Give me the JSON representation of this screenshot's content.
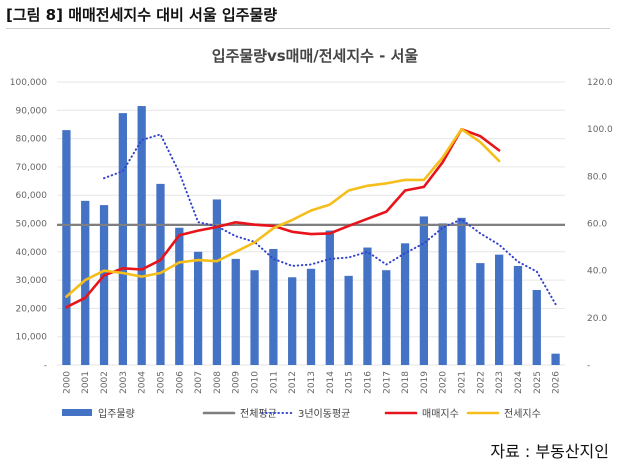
{
  "figure_title": "[그림 8] 매매전세지수 대비 서울 입주물량",
  "source": "자료 : 부동산지인",
  "colors": {
    "bar": "#4472C4",
    "avg": "#7F7F7F",
    "ma": "#3344CC",
    "sale": "#E8141B",
    "jeonse": "#F5BE1A"
  },
  "chart_data": {
    "type": "bar",
    "title": "입주물량vs매매/전세지수 - 서울",
    "categories": [
      "2000",
      "2001",
      "2002",
      "2003",
      "2004",
      "2005",
      "2006",
      "2007",
      "2008",
      "2009",
      "2010",
      "2011",
      "2012",
      "2013",
      "2014",
      "2015",
      "2016",
      "2017",
      "2018",
      "2019",
      "2020",
      "2021",
      "2022",
      "2023",
      "2024",
      "2025",
      "2026"
    ],
    "y_left": {
      "min": 0,
      "max": 100000,
      "step": 10000,
      "tick_labels": [
        "-",
        "10,000",
        "20,000",
        "30,000",
        "40,000",
        "50,000",
        "60,000",
        "70,000",
        "80,000",
        "90,000",
        "100,000"
      ]
    },
    "y_right": {
      "min": 0,
      "max": 120,
      "step": 20,
      "tick_labels": [
        "-",
        "20.0",
        "40.0",
        "60.0",
        "80.0",
        "100.0",
        "120.0"
      ]
    },
    "series": [
      {
        "name": "입주물량",
        "type": "bar",
        "axis": "left",
        "values": [
          83000,
          58000,
          56500,
          89000,
          91500,
          64000,
          48500,
          40000,
          58500,
          37500,
          33500,
          41000,
          31000,
          34000,
          47500,
          31500,
          41500,
          33500,
          43000,
          52500,
          50000,
          52000,
          36000,
          39000,
          35000,
          26500,
          4000
        ]
      },
      {
        "name": "전체평균",
        "type": "hline",
        "axis": "left",
        "values": [
          49500,
          49500,
          49500,
          49500,
          49500,
          49500,
          49500,
          49500,
          49500,
          49500,
          49500,
          49500,
          49500,
          49500,
          49500,
          49500,
          49500,
          49500,
          49500,
          49500,
          49500,
          49500,
          49500,
          49500,
          49500,
          49500,
          49500
        ]
      },
      {
        "name": "3년이동평균",
        "type": "line",
        "style": "dotted",
        "axis": "left",
        "values": [
          null,
          null,
          66000,
          68500,
          79500,
          81500,
          68000,
          50500,
          49000,
          45500,
          43500,
          37500,
          35000,
          35500,
          37500,
          38000,
          40000,
          35500,
          39500,
          43000,
          48500,
          51500,
          46500,
          42500,
          36500,
          33000,
          21500
        ]
      },
      {
        "name": "매매지수",
        "type": "line",
        "axis": "right",
        "values": [
          24.5,
          28.5,
          38,
          41,
          40.5,
          44.5,
          55,
          57,
          58.5,
          60.5,
          59.5,
          59,
          56.5,
          55.5,
          55.8,
          59,
          62,
          65,
          74,
          75.5,
          86,
          100,
          97,
          91,
          null,
          null,
          null
        ]
      },
      {
        "name": "전세지수",
        "type": "line",
        "axis": "right",
        "values": [
          29,
          36,
          40,
          39,
          37.5,
          39,
          43.5,
          44.5,
          44,
          48,
          52,
          58,
          61.5,
          65.5,
          68,
          74,
          76,
          77,
          78.5,
          78.5,
          88,
          100,
          94.5,
          86.5,
          null,
          null,
          null
        ]
      }
    ],
    "legend": [
      "입주물량",
      "전체평균",
      "3년이동평균",
      "매매지수",
      "전세지수"
    ],
    "legend_position": "bottom"
  }
}
